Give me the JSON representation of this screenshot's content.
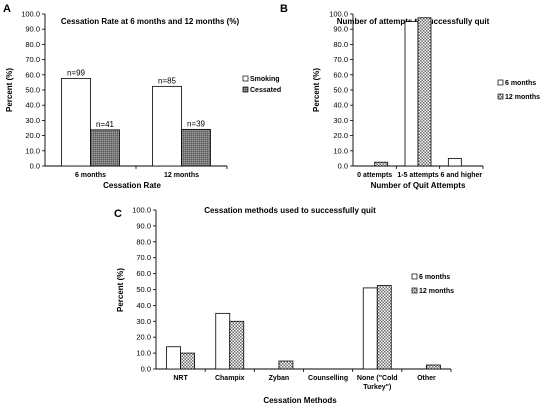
{
  "chart_data": [
    {
      "panel": "A",
      "type": "bar",
      "title": "Cessation Rate at 6 months and 12 months (%)",
      "xlabel": "Cessation Rate",
      "ylabel": "Percent (%)",
      "ylim": [
        0,
        100
      ],
      "ytick_step": 10,
      "ytick_labels": [
        "0.0",
        "10.0",
        "20.0",
        "30.0",
        "40.0",
        "50.0",
        "60.0",
        "70.0",
        "80.0",
        "90.0",
        "100.0"
      ],
      "categories": [
        "6 months",
        "12 months"
      ],
      "series": [
        {
          "name": "Smoking",
          "values": [
            57.6,
            52.4
          ],
          "labels": [
            "n=99",
            "n=85"
          ],
          "fill": "white"
        },
        {
          "name": "Cessated",
          "values": [
            23.8,
            24.1
          ],
          "labels": [
            "n=41",
            "n=39"
          ],
          "fill": "gray"
        }
      ],
      "legend": "right"
    },
    {
      "panel": "B",
      "type": "bar",
      "title": "Number of attempts to successfully quit",
      "xlabel": "Number of Quit Attempts",
      "ylabel": "Percent (%)",
      "ylim": [
        0,
        100
      ],
      "ytick_step": 10,
      "ytick_labels": [
        "0.0",
        "10.0",
        "20.0",
        "30.0",
        "40.0",
        "50.0",
        "60.0",
        "70.0",
        "80.0",
        "90.0",
        "100.0"
      ],
      "categories": [
        "0 attempts",
        "1-5 attempts",
        "6 and higher"
      ],
      "series": [
        {
          "name": "6 months",
          "values": [
            0,
            95,
            5
          ],
          "fill": "white"
        },
        {
          "name": "12 months",
          "values": [
            2.5,
            97.5,
            0
          ],
          "fill": "check"
        }
      ],
      "legend": "right"
    },
    {
      "panel": "C",
      "type": "bar",
      "title": "Cessation methods used to successfully quit",
      "xlabel": "Cessation Methods",
      "ylabel": "Percent (%)",
      "ylim": [
        0,
        100
      ],
      "ytick_step": 10,
      "ytick_labels": [
        "0.0",
        "10.0",
        "20.0",
        "30.0",
        "40.0",
        "50.0",
        "60.0",
        "70.0",
        "80.0",
        "90.0",
        "100.0"
      ],
      "categories": [
        "NRT",
        "Champix",
        "Zyban",
        "Counselling",
        "None (\"Cold Turkey\")",
        "Other"
      ],
      "category_lines": [
        [
          "NRT"
        ],
        [
          "Champix"
        ],
        [
          "Zyban"
        ],
        [
          "Counselling"
        ],
        [
          "None (\"Cold",
          "Turkey\")"
        ],
        [
          "Other"
        ]
      ],
      "series": [
        {
          "name": "6 months",
          "values": [
            14,
            35,
            0,
            0,
            51,
            0
          ],
          "fill": "white"
        },
        {
          "name": "12 months",
          "values": [
            10,
            30,
            5,
            0,
            52.5,
            2.5
          ],
          "fill": "check"
        }
      ],
      "legend": "right"
    }
  ]
}
